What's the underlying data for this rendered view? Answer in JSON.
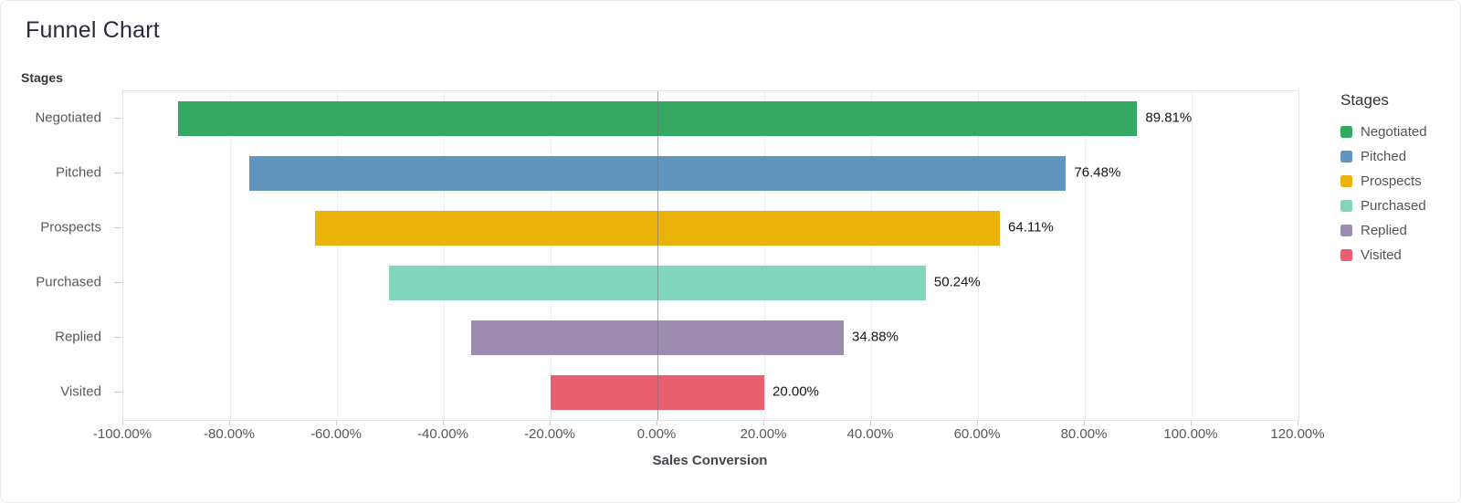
{
  "page_title": "Funnel Chart",
  "chart_data": {
    "type": "bar",
    "subtype": "horizontal-funnel",
    "title": "Funnel Chart",
    "y_axis_title": "Stages",
    "xlabel": "Sales Conversion",
    "categories": [
      "Negotiated",
      "Pitched",
      "Prospects",
      "Purchased",
      "Replied",
      "Visited"
    ],
    "values": [
      89.81,
      76.48,
      64.11,
      50.24,
      34.88,
      20.0
    ],
    "value_labels": [
      "89.81%",
      "76.48%",
      "64.11%",
      "50.24%",
      "34.88%",
      "20.00%"
    ],
    "bar_colors": [
      "#35a864",
      "#6095bd",
      "#ecb20c",
      "#81d6bd",
      "#9b8cb0",
      "#ea5f6f"
    ],
    "bars_centered_at_zero": true,
    "xlim": [
      -100,
      120
    ],
    "x_ticks": [
      -100,
      -80,
      -60,
      -40,
      -20,
      0,
      20,
      40,
      60,
      80,
      100,
      120
    ],
    "x_tick_labels": [
      "-100.00%",
      "-80.00%",
      "-60.00%",
      "-40.00%",
      "-20.00%",
      "0.00%",
      "20.00%",
      "40.00%",
      "60.00%",
      "80.00%",
      "100.00%",
      "120.00%"
    ],
    "grid": "vertical-only",
    "legend": {
      "title": "Stages",
      "position": "right",
      "entries": [
        "Negotiated",
        "Pitched",
        "Prospects",
        "Purchased",
        "Replied",
        "Visited"
      ]
    }
  }
}
